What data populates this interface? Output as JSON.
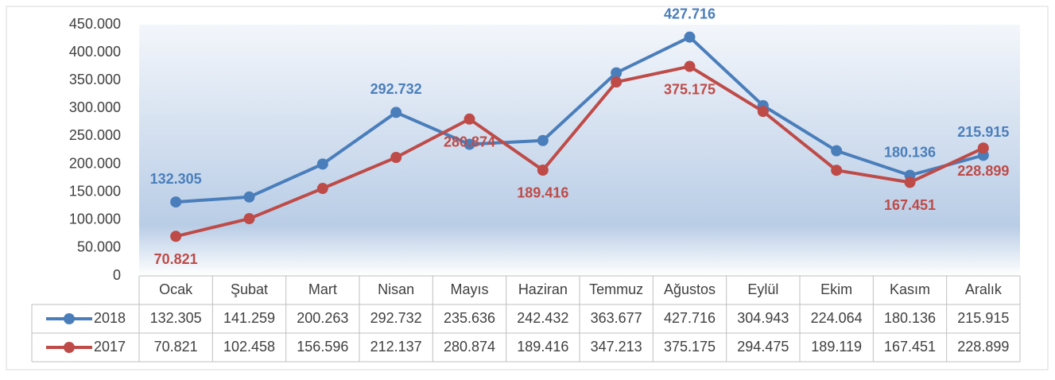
{
  "chart_data": {
    "type": "line",
    "categories": [
      "Ocak",
      "Şubat",
      "Mart",
      "Nisan",
      "Mayıs",
      "Haziran",
      "Temmuz",
      "Ağustos",
      "Eylül",
      "Ekim",
      "Kasım",
      "Aralık"
    ],
    "series": [
      {
        "name": "2018",
        "color": "#4a7ebb",
        "label_position": "above",
        "data_label_indices": [
          0,
          3,
          7,
          10,
          11
        ],
        "values": [
          132305,
          141259,
          200263,
          292732,
          235636,
          242432,
          363677,
          427716,
          304943,
          224064,
          180136,
          215915
        ],
        "value_labels": [
          "132.305",
          "141.259",
          "200.263",
          "292.732",
          "235.636",
          "242.432",
          "363.677",
          "427.716",
          "304.943",
          "224.064",
          "180.136",
          "215.915"
        ]
      },
      {
        "name": "2017",
        "color": "#be4b48",
        "label_position": "below",
        "data_label_indices": [
          0,
          4,
          5,
          7,
          10,
          11
        ],
        "values": [
          70821,
          102458,
          156596,
          212137,
          280874,
          189416,
          347213,
          375175,
          294475,
          189119,
          167451,
          228899
        ],
        "value_labels": [
          "70.821",
          "102.458",
          "156.596",
          "212.137",
          "280.874",
          "189.416",
          "347.213",
          "375.175",
          "294.475",
          "189.119",
          "167.451",
          "228.899"
        ]
      }
    ],
    "ylim": [
      0,
      450000
    ],
    "yticks": [
      0,
      {
        "value": 50000,
        "label": "50.000"
      },
      {
        "value": 100000,
        "label": "100.000"
      },
      {
        "value": 150000,
        "label": "150.000"
      },
      {
        "value": 200000,
        "label": "200.000"
      },
      {
        "value": 250000,
        "label": "250.000"
      },
      {
        "value": 300000,
        "label": "300.000"
      },
      {
        "value": 350000,
        "label": "350.000"
      },
      {
        "value": 400000,
        "label": "400.000"
      },
      {
        "value": 450000,
        "label": "450.000"
      }
    ],
    "data_table": true
  }
}
